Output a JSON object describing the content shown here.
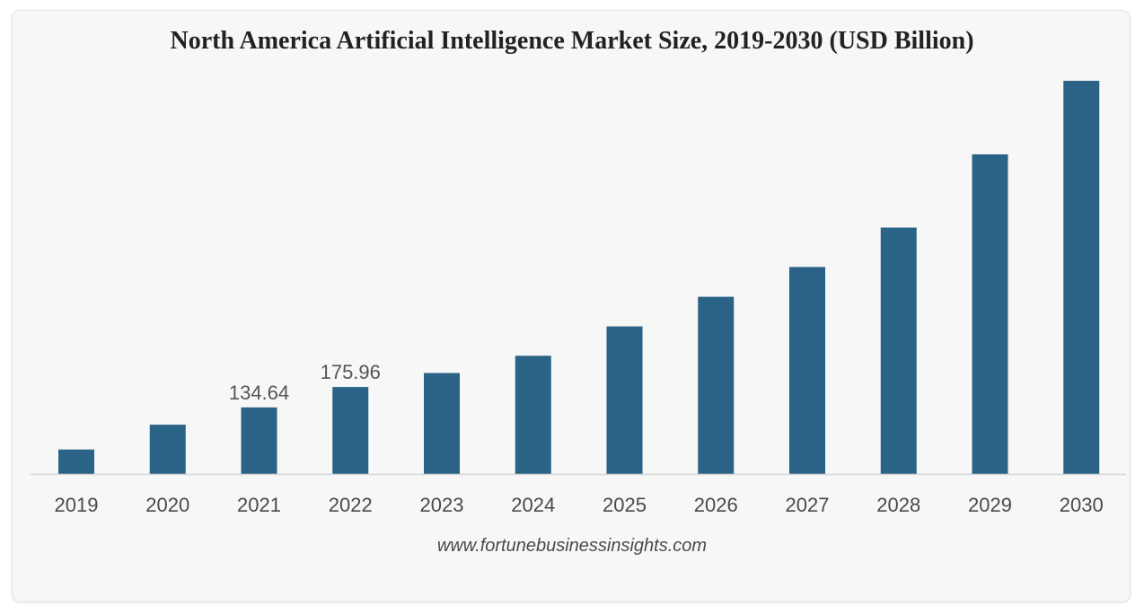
{
  "chart_data": {
    "type": "bar",
    "title": "North America Artificial Intelligence Market Size, 2019-2030 (USD Billion)",
    "categories": [
      "2019",
      "2020",
      "2021",
      "2022",
      "2023",
      "2024",
      "2025",
      "2026",
      "2027",
      "2028",
      "2029",
      "2030"
    ],
    "values": [
      49.5,
      99.7,
      134.64,
      175.96,
      204.2,
      239.1,
      298.5,
      358.4,
      418.7,
      498.4,
      646.5,
      795.3
    ],
    "data_labels": [
      null,
      null,
      "134.64",
      "175.96",
      null,
      null,
      null,
      null,
      null,
      null,
      null,
      null
    ],
    "xlabel": "",
    "ylabel": "",
    "ylim": [
      0,
      800
    ],
    "y_axis_visible": false,
    "grid": false,
    "legend": "none",
    "bar_color": "#2a6386"
  },
  "source": "www.fortunebusinessinsights.com"
}
